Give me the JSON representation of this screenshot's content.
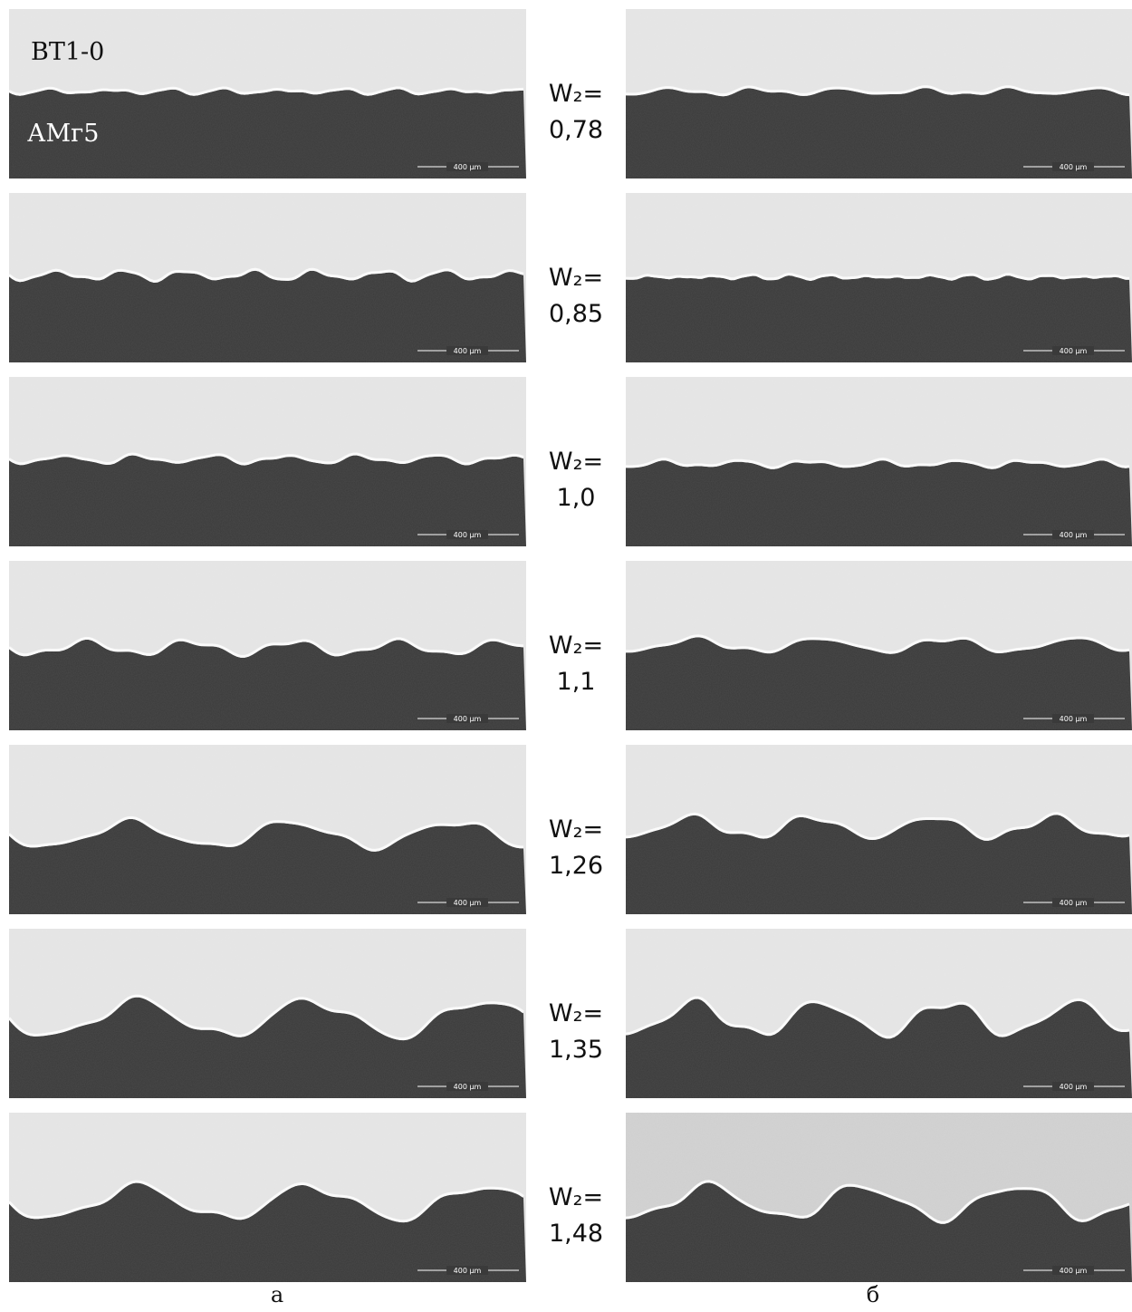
{
  "labels": {
    "top_material": "ВТ1-0",
    "bottom_material": "АМг5"
  },
  "rows": [
    {
      "parameter": "W₂=",
      "value": "0,78"
    },
    {
      "parameter": "W₂=",
      "value": "0,85"
    },
    {
      "parameter": "W₂=",
      "value": "1,0"
    },
    {
      "parameter": "W₂=",
      "value": "1,1"
    },
    {
      "parameter": "W₂=",
      "value": "1,26"
    },
    {
      "parameter": "W₂=",
      "value": "1,35"
    },
    {
      "parameter": "W₂=",
      "value": "1,48"
    }
  ],
  "scale_bar": "400 µm",
  "columns": [
    "а",
    "б"
  ]
}
